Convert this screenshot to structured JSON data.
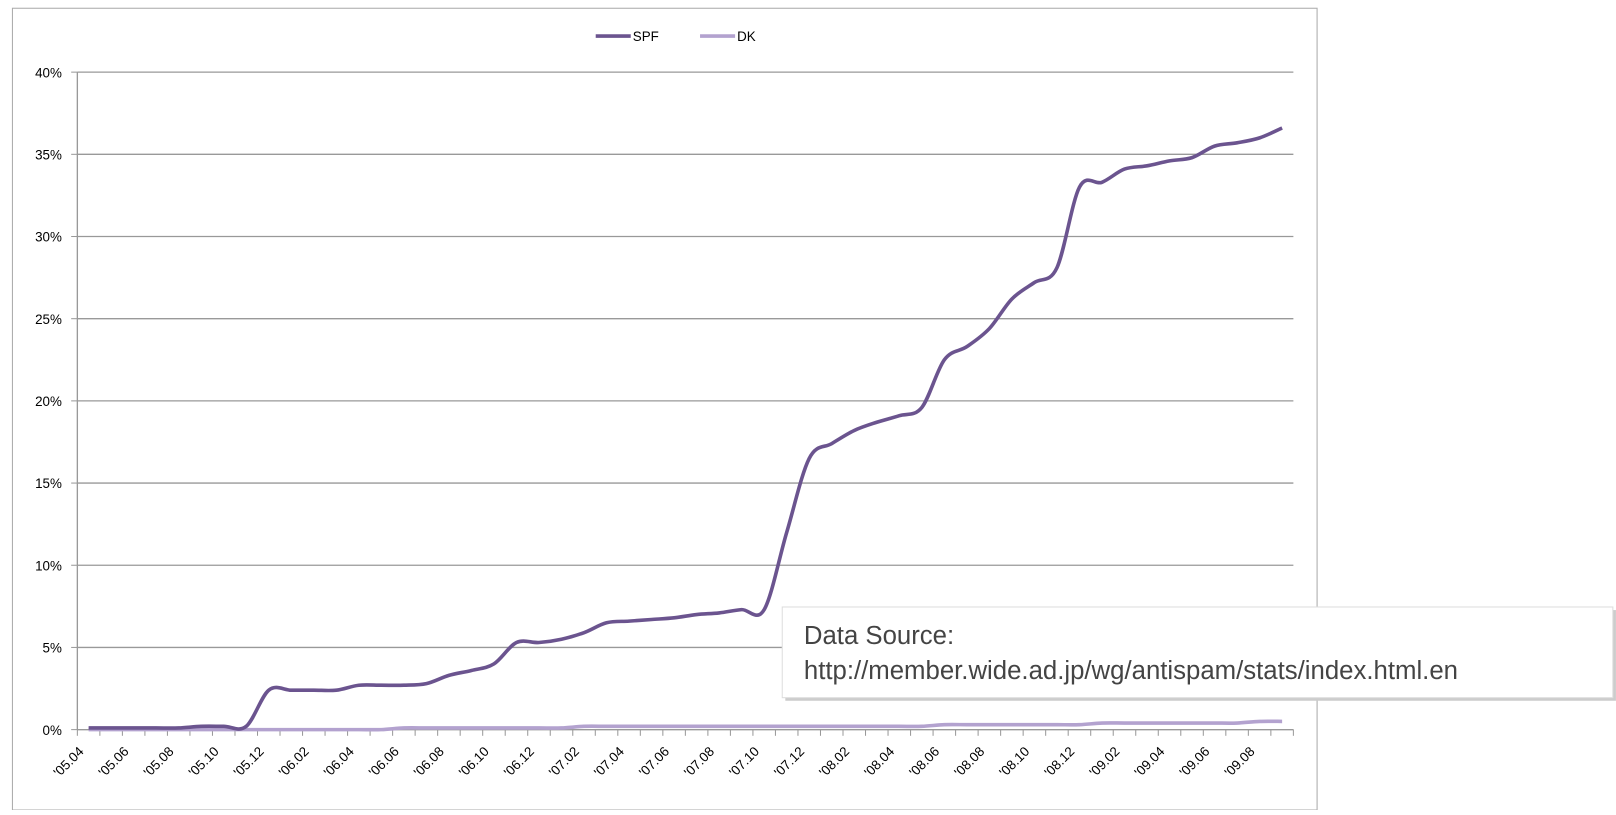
{
  "chart_data": {
    "type": "line",
    "categories": [
      "'05.04",
      null,
      "'05.06",
      null,
      "'05.08",
      null,
      "'05.10",
      null,
      "'05.12",
      null,
      "'06.02",
      null,
      "'06.04",
      null,
      "'06.06",
      null,
      "'06.08",
      null,
      "'06.10",
      null,
      "'06.12",
      null,
      "'07.02",
      null,
      "'07.04",
      null,
      "'07.06",
      null,
      "'07.08",
      null,
      "'07.10",
      null,
      "'07.12",
      null,
      "'08.02",
      null,
      "'08.04",
      null,
      "'08.06",
      null,
      "'08.08",
      null,
      "'08.10",
      null,
      "'08.12",
      null,
      "'09.02",
      null,
      "'09.04",
      null,
      "'09.06",
      null,
      "'09.08",
      null
    ],
    "series": [
      {
        "name": "SPF",
        "color": "#6b548f",
        "values": [
          0.1,
          0.1,
          0.1,
          0.1,
          0.1,
          0.2,
          0.2,
          0.2,
          2.4,
          2.4,
          2.4,
          2.4,
          2.7,
          2.7,
          2.7,
          2.8,
          3.3,
          3.6,
          4.0,
          5.3,
          5.3,
          5.5,
          5.9,
          6.5,
          6.6,
          6.7,
          6.8,
          7.0,
          7.1,
          7.3,
          7.3,
          12.0,
          16.5,
          17.4,
          18.2,
          18.7,
          19.1,
          19.6,
          22.5,
          23.3,
          24.4,
          26.2,
          27.2,
          28.1,
          33.0,
          33.3,
          34.1,
          34.3,
          34.6,
          34.8,
          35.5,
          35.7,
          36.0,
          36.6
        ]
      },
      {
        "name": "DK",
        "color": "#b3a2cf",
        "values": [
          0,
          0,
          0,
          0,
          0,
          0,
          0,
          0,
          0,
          0,
          0,
          0,
          0,
          0,
          0.1,
          0.1,
          0.1,
          0.1,
          0.1,
          0.1,
          0.1,
          0.1,
          0.2,
          0.2,
          0.2,
          0.2,
          0.2,
          0.2,
          0.2,
          0.2,
          0.2,
          0.2,
          0.2,
          0.2,
          0.2,
          0.2,
          0.2,
          0.2,
          0.3,
          0.3,
          0.3,
          0.3,
          0.3,
          0.3,
          0.3,
          0.4,
          0.4,
          0.4,
          0.4,
          0.4,
          0.4,
          0.4,
          0.5,
          0.5
        ]
      }
    ],
    "ylim": [
      0,
      40
    ],
    "yticks": [
      {
        "value": 0,
        "label": "0%"
      },
      {
        "value": 5,
        "label": "5%"
      },
      {
        "value": 10,
        "label": "10%"
      },
      {
        "value": 15,
        "label": "15%"
      },
      {
        "value": 20,
        "label": "20%"
      },
      {
        "value": 25,
        "label": "25%"
      },
      {
        "value": 30,
        "label": "30%"
      },
      {
        "value": 35,
        "label": "35%"
      },
      {
        "value": 40,
        "label": "40%"
      }
    ],
    "grid": true,
    "legend": "top",
    "annotation": [
      "Data Source:",
      "http://member.wide.ad.jp/wg/antispam/stats/index.html.en"
    ]
  }
}
